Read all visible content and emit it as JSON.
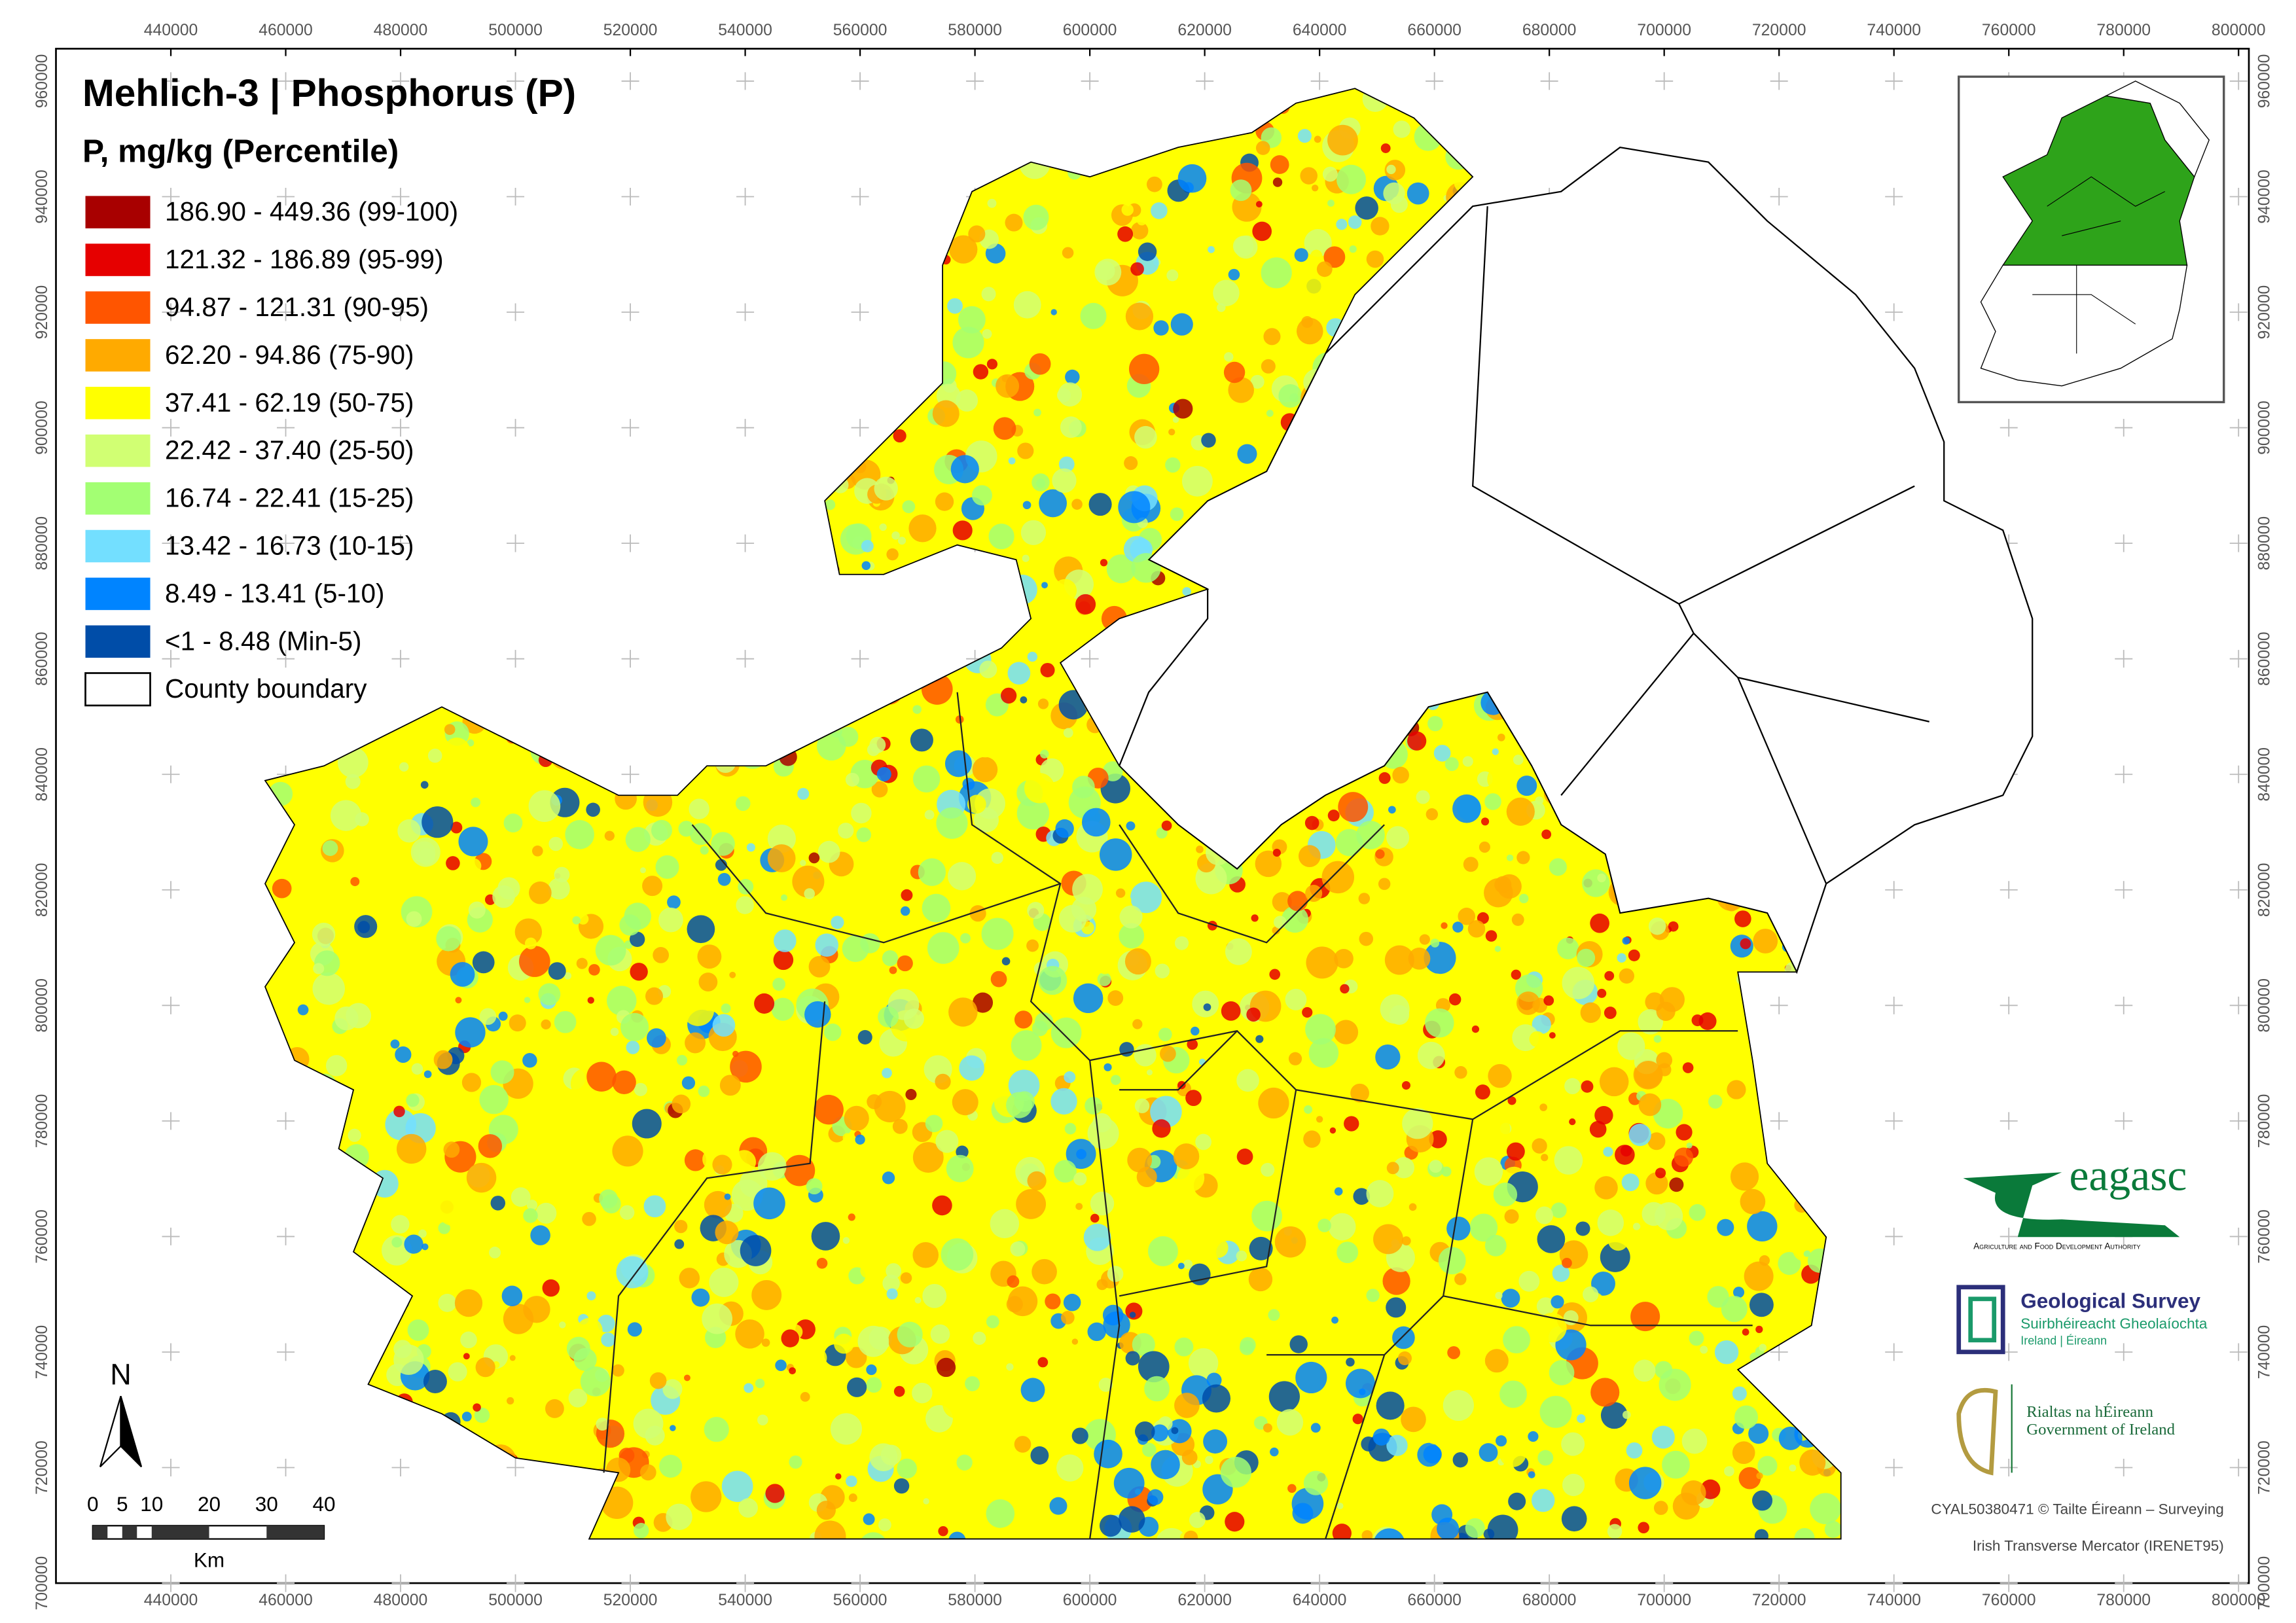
{
  "map": {
    "title": "Mehlich-3 | Phosphorus (P)",
    "legend": {
      "title": "P, mg/kg (Percentile)",
      "items": [
        {
          "label": "186.90 - 449.36 (99-100)",
          "color": "#a80000"
        },
        {
          "label": "121.32 - 186.89 (95-99)",
          "color": "#e60000"
        },
        {
          "label": "94.87 - 121.31 (90-95)",
          "color": "#ff5500"
        },
        {
          "label": "62.20 - 94.86 (75-90)",
          "color": "#ffaa00"
        },
        {
          "label": "37.41 - 62.19 (50-75)",
          "color": "#ffff00"
        },
        {
          "label": "22.42 - 37.40 (25-50)",
          "color": "#d1ff73"
        },
        {
          "label": "16.74 - 22.41 (15-25)",
          "color": "#a3ff73"
        },
        {
          "label": "13.42 - 16.73 (10-15)",
          "color": "#73dfff"
        },
        {
          "label": "8.49 - 13.41 (5-10)",
          "color": "#0084ff"
        },
        {
          "label": "<1 - 8.48 (Min-5)",
          "color": "#004da8"
        }
      ],
      "boundary_label": "County boundary"
    },
    "grid": {
      "eastings": [
        440000,
        460000,
        480000,
        500000,
        520000,
        540000,
        560000,
        580000,
        600000,
        620000,
        640000,
        660000,
        680000,
        700000,
        720000,
        740000,
        760000,
        780000,
        800000
      ],
      "northings": [
        960000,
        940000,
        920000,
        900000,
        880000,
        860000,
        840000,
        820000,
        800000,
        780000,
        760000,
        740000,
        720000,
        700000
      ]
    },
    "north_arrow": "N",
    "scale_bar": {
      "labels": [
        "0",
        "5",
        "10",
        "20",
        "30",
        "40"
      ],
      "unit": "Km"
    },
    "logos": {
      "teagasc": "eagasc",
      "teagasc_tagline": "Agriculture and Food Development Authority",
      "gsi_name": "Geological Survey",
      "gsi_irish": "Suirbhéireacht Gheolaíochta",
      "gsi_sub": "Ireland | Éireann",
      "gov_irish": "Rialtas na hÉireann",
      "gov_english": "Government of Ireland"
    },
    "credits": [
      "CYAL50380471 © Tailte Éireann – Surveying",
      "Irish Transverse Mercator (IRENET95)"
    ]
  }
}
